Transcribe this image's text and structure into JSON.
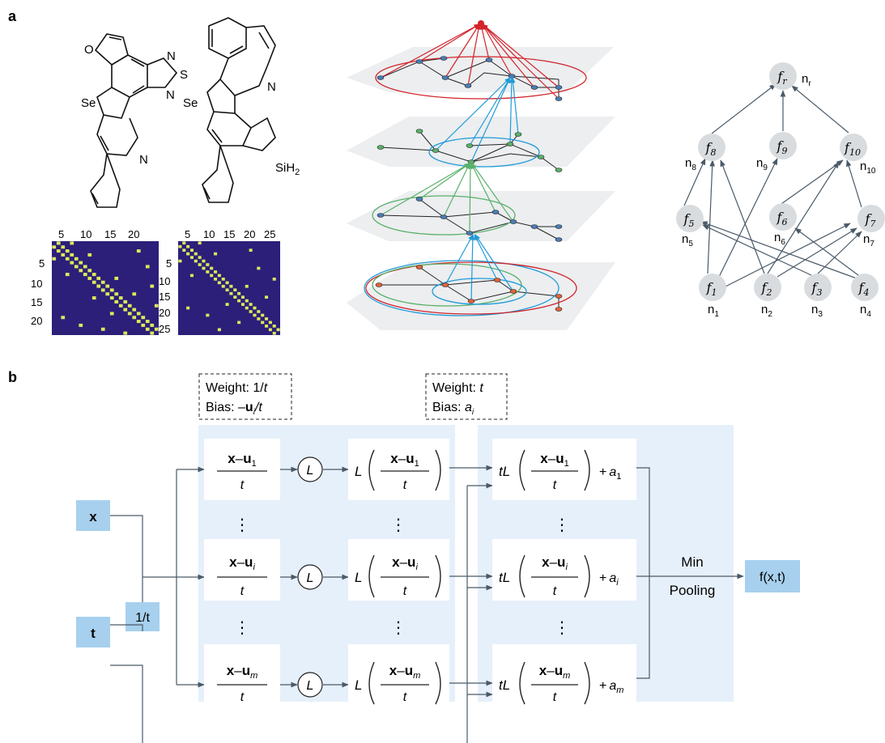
{
  "panel_a": {
    "label": "a",
    "mol1_atoms": [
      "O",
      "N",
      "S",
      "N",
      "Se",
      "N"
    ],
    "mol2_atoms": [
      "N",
      "Se",
      "SiH",
      "2"
    ],
    "matrix1_xticks": [
      "5",
      "10",
      "15",
      "20"
    ],
    "matrix1_yticks": [
      "5",
      "10",
      "15",
      "20"
    ],
    "matrix2_xticks": [
      "5",
      "10",
      "15",
      "20",
      "25"
    ],
    "matrix2_yticks": [
      "5",
      "10",
      "15",
      "20",
      "25"
    ],
    "tree": {
      "top": {
        "f": "f",
        "sub": "r",
        "n": "n",
        "nsub": "r"
      },
      "row2": [
        {
          "f": "f",
          "sub": "8",
          "n": "n",
          "nsub": "8"
        },
        {
          "f": "f",
          "sub": "9",
          "n": "n",
          "nsub": "9"
        },
        {
          "f": "f",
          "sub": "10",
          "n": "n",
          "nsub": "10"
        }
      ],
      "row3": [
        {
          "f": "f",
          "sub": "5",
          "n": "n",
          "nsub": "5"
        },
        {
          "f": "f",
          "sub": "6",
          "n": "n",
          "nsub": "6"
        },
        {
          "f": "f",
          "sub": "7",
          "n": "n",
          "nsub": "7"
        }
      ],
      "row4": [
        {
          "f": "f",
          "sub": "1",
          "n": "n",
          "nsub": "1"
        },
        {
          "f": "f",
          "sub": "2",
          "n": "n",
          "nsub": "2"
        },
        {
          "f": "f",
          "sub": "3",
          "n": "n",
          "nsub": "3"
        },
        {
          "f": "f",
          "sub": "4",
          "n": "n",
          "nsub": "4"
        }
      ]
    }
  },
  "panel_b": {
    "label": "b",
    "weight1": "Weight: 1/",
    "weight1_t": "t",
    "bias1": "Bias: –",
    "bias1_u": "u",
    "bias1_i": "i",
    "bias1_t": "/t",
    "weight2": "Weight: ",
    "weight2_t": "t",
    "bias2": "Bias: ",
    "bias2_a": "a",
    "bias2_i": "i",
    "input_x": "x",
    "input_t": "t",
    "scale": "1/t",
    "L": "L",
    "t": "t",
    "u": "u",
    "a": "a",
    "sub_1": "1",
    "sub_i": "i",
    "sub_m": "m",
    "dots": "⋮",
    "pool_line1": "Min",
    "pool_line2": "Pooling",
    "output": "f(x,t)"
  },
  "colors": {
    "highlight": "#e6f0fa",
    "box_blue": "#a7d0ee",
    "arrow": "#4a5a68",
    "node_gray": "#d9dcdf",
    "matrix_bg": "#2b1f7a",
    "matrix_cell": "#dde85a",
    "red": "#d2232a",
    "blue": "#1f9bd7",
    "green": "#5ab06a"
  }
}
